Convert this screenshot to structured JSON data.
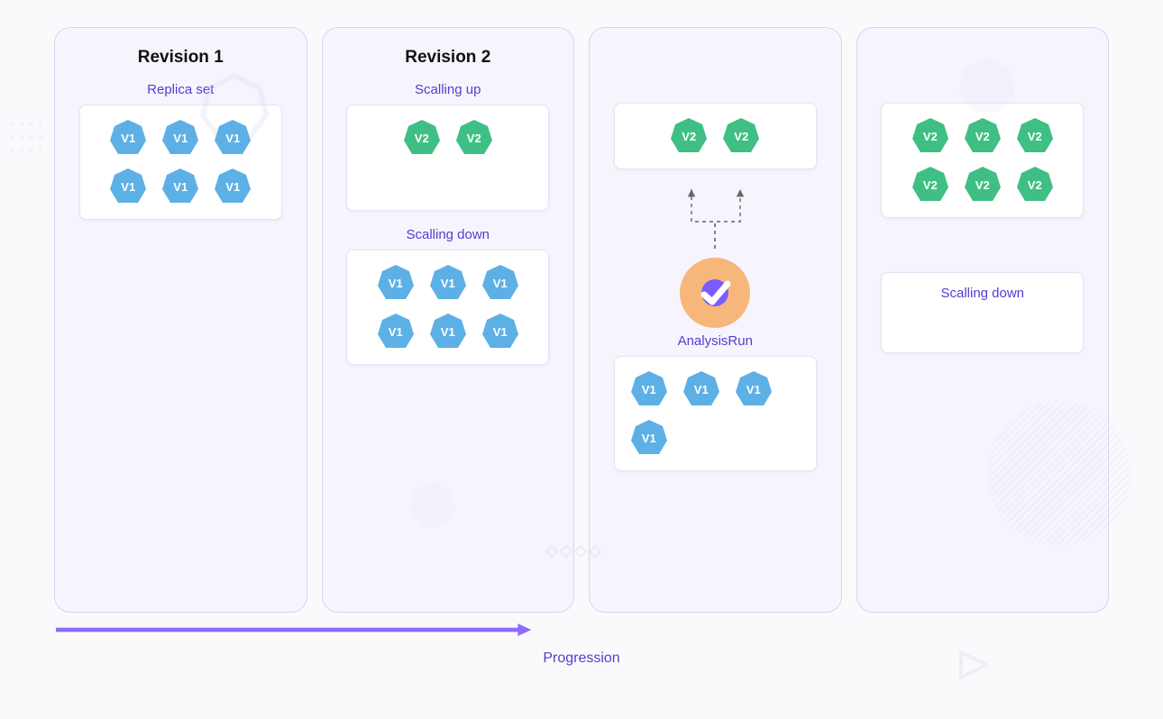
{
  "diagram": {
    "type": "infographic",
    "background_color": "#fafafc",
    "stage_bg": "#f6f5fd",
    "stage_border": "#d8d4f2",
    "card_bg": "#ffffff",
    "card_border": "#e6e4f4",
    "text_primary": "#111111",
    "text_accent": "#4f3fcf",
    "pod_v1_color": "#5db0e6",
    "pod_v2_color": "#3fbf84",
    "pod_text_color": "#ffffff",
    "check_badge_bg": "#f7b77a",
    "check_badge_inner": "#7b5cff",
    "check_tick_color": "#ffffff",
    "arrow_color": "#666666",
    "progression_color": "#8e6bff",
    "title_fontsize": 19,
    "sublabel_fontsize": 15,
    "podlabel_fontsize": 13,
    "progression_label": "Progression",
    "stages": [
      {
        "title": "Revision 1",
        "groups": [
          {
            "label": "Replica set",
            "pods": [
              "V1",
              "V1",
              "V1",
              "V1",
              "V1",
              "V1"
            ],
            "version": "v1",
            "rows": 2,
            "cols": 3
          }
        ]
      },
      {
        "title": "Revision 2",
        "groups": [
          {
            "label": "Scalling up",
            "pods": [
              "V2",
              "V2"
            ],
            "version": "v2",
            "rows": 1,
            "cols": 2
          },
          {
            "label": "Scalling down",
            "pods": [
              "V1",
              "V1",
              "V1",
              "V1",
              "V1",
              "V1"
            ],
            "version": "v1",
            "rows": 2,
            "cols": 3
          }
        ]
      },
      {
        "title": "",
        "arrows_from_analysis_to_top": true,
        "groups": [
          {
            "label": "",
            "pods": [
              "V2",
              "V2"
            ],
            "version": "v2",
            "rows": 1,
            "cols": 2
          },
          {
            "label": "AnalysisRun",
            "pods": [
              "V1",
              "V1",
              "V1",
              "V1"
            ],
            "version": "v1",
            "rows": 2,
            "cols": 3,
            "has_badge": true,
            "left_align": true
          }
        ]
      },
      {
        "title": "",
        "groups": [
          {
            "label": "",
            "pods": [
              "V2",
              "V2",
              "V2",
              "V2",
              "V2",
              "V2"
            ],
            "version": "v2",
            "rows": 2,
            "cols": 3
          },
          {
            "label": "Scalling down",
            "pods": [],
            "version": "v1",
            "label_inside": true
          }
        ]
      }
    ]
  }
}
